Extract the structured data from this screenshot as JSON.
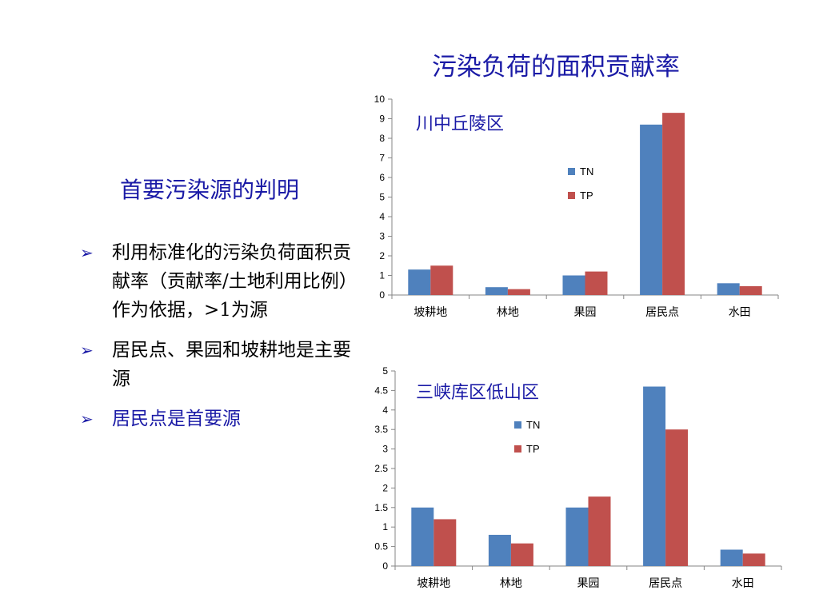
{
  "slide": {
    "title": "污染负荷的面积贡献率",
    "subtitle": "首要污染源的判明",
    "bullets": [
      {
        "text": "利用标准化的污染负荷面积贡献率（贡献率/土地利用比例）作为依据，>1为源"
      },
      {
        "text": "居民点、果园和坡耕地是主要源"
      },
      {
        "text": "居民点是首要源"
      }
    ]
  },
  "colors": {
    "TN": "#4f81bd",
    "TP": "#c0504d",
    "heading": "#1a1aa6"
  },
  "chart_data": [
    {
      "type": "bar",
      "title": "川中丘陵区",
      "categories": [
        "坡耕地",
        "林地",
        "果园",
        "居民点",
        "水田"
      ],
      "series": [
        {
          "name": "TN",
          "values": [
            1.3,
            0.4,
            1.0,
            8.7,
            0.6
          ]
        },
        {
          "name": "TP",
          "values": [
            1.5,
            0.3,
            1.2,
            9.3,
            0.45
          ]
        }
      ],
      "ylim": [
        0,
        10
      ],
      "yticks": [
        "0",
        "1",
        "2",
        "3",
        "4",
        "5",
        "6",
        "7",
        "8",
        "9",
        "10"
      ],
      "legend": "right-middle",
      "grid": false
    },
    {
      "type": "bar",
      "title": "三峡库区低山区",
      "categories": [
        "坡耕地",
        "林地",
        "果园",
        "居民点",
        "水田"
      ],
      "series": [
        {
          "name": "TN",
          "values": [
            1.5,
            0.8,
            1.5,
            4.6,
            0.42
          ]
        },
        {
          "name": "TP",
          "values": [
            1.2,
            0.58,
            1.78,
            3.5,
            0.32
          ]
        }
      ],
      "ylim": [
        0,
        5
      ],
      "yticks": [
        "0",
        "0.5",
        "1",
        "1.5",
        "2",
        "2.5",
        "3",
        "3.5",
        "4",
        "4.5",
        "5"
      ],
      "legend": "right-middle",
      "grid": false
    }
  ]
}
